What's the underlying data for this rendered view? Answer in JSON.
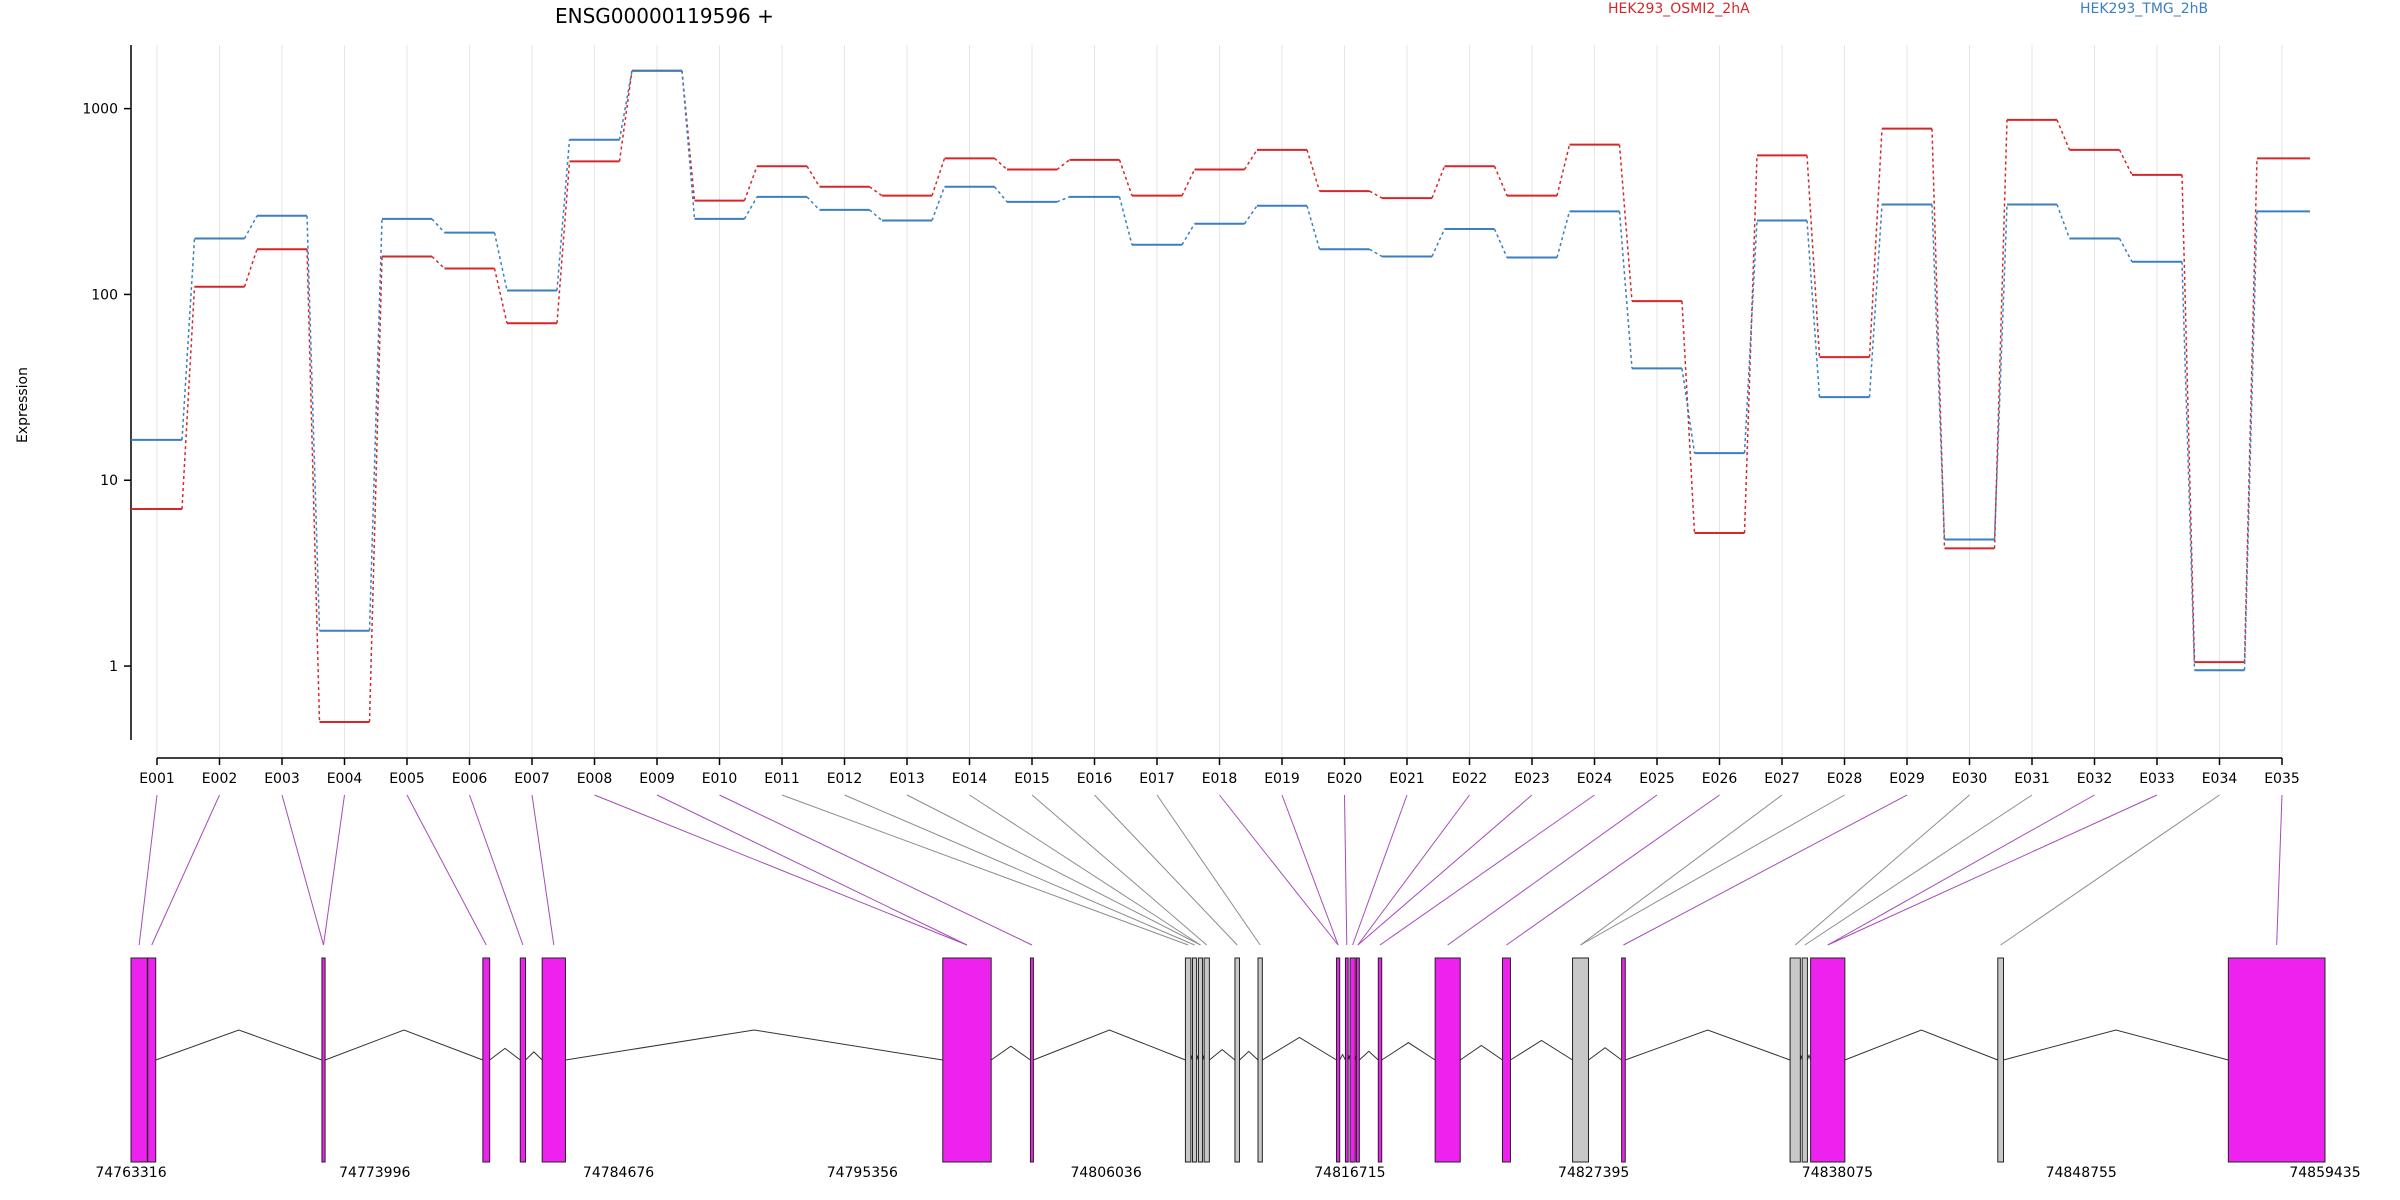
{
  "chart_data": {
    "type": "line",
    "title": "ENSG00000119596 +",
    "ylabel": "Expression",
    "yscale": "log",
    "ylim": [
      0.4,
      2200
    ],
    "yticks": [
      1,
      10,
      100,
      1000
    ],
    "ytick_labels": [
      "1",
      "10",
      "100",
      "1000"
    ],
    "grid": "vertical",
    "legend_position": "top",
    "categories": [
      "E001",
      "E002",
      "E003",
      "E004",
      "E005",
      "E006",
      "E007",
      "E008",
      "E009",
      "E010",
      "E011",
      "E012",
      "E013",
      "E014",
      "E015",
      "E016",
      "E017",
      "E018",
      "E019",
      "E020",
      "E021",
      "E022",
      "E023",
      "E024",
      "E025",
      "E026",
      "E027",
      "E028",
      "E029",
      "E030",
      "E031",
      "E032",
      "E033",
      "E034",
      "E035"
    ],
    "series": [
      {
        "name": "HEK293_OSMI2_2hA",
        "color": "#d62728",
        "values": [
          7,
          110,
          175,
          0.5,
          160,
          138,
          70,
          520,
          1600,
          320,
          490,
          380,
          340,
          540,
          470,
          530,
          340,
          470,
          600,
          360,
          330,
          490,
          340,
          640,
          92,
          5.2,
          560,
          46,
          780,
          4.3,
          870,
          600,
          440,
          1.05,
          540
        ]
      },
      {
        "name": "HEK293_TMG_2hB",
        "color": "#3a7fc1",
        "values": [
          16.5,
          200,
          265,
          1.55,
          255,
          215,
          105,
          680,
          1600,
          255,
          335,
          285,
          250,
          380,
          315,
          335,
          185,
          240,
          300,
          175,
          160,
          225,
          158,
          280,
          40,
          14,
          250,
          28,
          305,
          4.8,
          305,
          200,
          150,
          0.95,
          280
        ]
      }
    ],
    "gene_model": {
      "coordinates": [
        "74763316",
        "74773996",
        "74784676",
        "74795356",
        "74806036",
        "74816715",
        "74827395",
        "74838075",
        "74848755",
        "74859435"
      ],
      "coord_range": [
        74763316,
        74859435
      ],
      "exon_color": "#ee22ee",
      "nonsig_color": "#c8c8c8",
      "exons": [
        {
          "start": 74763316,
          "end": 74764030,
          "highlight": true
        },
        {
          "start": 74764050,
          "end": 74764400,
          "highlight": true
        },
        {
          "start": 74771680,
          "end": 74771820,
          "highlight": true
        },
        {
          "start": 74778730,
          "end": 74779030,
          "highlight": true
        },
        {
          "start": 74780370,
          "end": 74780600,
          "highlight": true
        },
        {
          "start": 74781330,
          "end": 74782350,
          "highlight": true
        },
        {
          "start": 74798880,
          "end": 74801000,
          "highlight": true
        },
        {
          "start": 74802720,
          "end": 74802850,
          "highlight": true
        },
        {
          "start": 74809510,
          "end": 74809750,
          "highlight": false
        },
        {
          "start": 74809820,
          "end": 74810000,
          "highlight": false
        },
        {
          "start": 74810080,
          "end": 74810260,
          "highlight": false
        },
        {
          "start": 74810330,
          "end": 74810560,
          "highlight": false
        },
        {
          "start": 74811680,
          "end": 74811880,
          "highlight": false
        },
        {
          "start": 74812690,
          "end": 74812880,
          "highlight": false
        },
        {
          "start": 74816130,
          "end": 74816270,
          "highlight": true
        },
        {
          "start": 74816520,
          "end": 74816640,
          "highlight": true
        },
        {
          "start": 74816720,
          "end": 74816950,
          "highlight": true
        },
        {
          "start": 74817000,
          "end": 74817130,
          "highlight": true
        },
        {
          "start": 74817960,
          "end": 74818110,
          "highlight": true
        },
        {
          "start": 74820450,
          "end": 74821550,
          "highlight": true
        },
        {
          "start": 74823400,
          "end": 74823750,
          "highlight": true
        },
        {
          "start": 74826470,
          "end": 74827170,
          "highlight": false
        },
        {
          "start": 74828620,
          "end": 74828780,
          "highlight": true
        },
        {
          "start": 74836000,
          "end": 74836450,
          "highlight": false
        },
        {
          "start": 74836530,
          "end": 74836760,
          "highlight": false
        },
        {
          "start": 74836900,
          "end": 74838400,
          "highlight": true
        },
        {
          "start": 74845100,
          "end": 74845350,
          "highlight": false
        },
        {
          "start": 74855200,
          "end": 74859435,
          "highlight": true
        }
      ]
    }
  }
}
